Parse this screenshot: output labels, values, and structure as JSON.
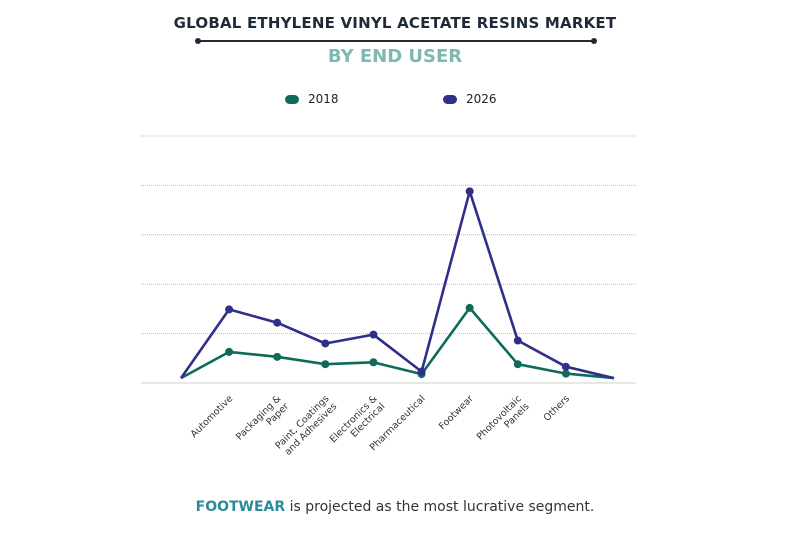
{
  "header": {
    "title": "GLOBAL ETHYLENE VINYL ACETATE RESINS MARKET",
    "subtitle": "BY END USER"
  },
  "colors": {
    "series_2018": "#0e6b59",
    "series_2026": "#2f2f8a",
    "title": "#1e2a38",
    "subtitle": "#7fb8b2",
    "highlight": "#2a8c99"
  },
  "caption": {
    "highlight": "FOOTWEAR",
    "rest": " is projected as the most lucrative segment."
  },
  "chart_data": {
    "type": "line",
    "title": "GLOBAL ETHYLENE VINYL ACETATE RESINS MARKET",
    "subtitle": "BY END USER",
    "categories": [
      "",
      "Automotive",
      "Packaging & Paper",
      "Paint, Coatings and Adhesives",
      "Electronics & Electrical",
      "Pharmaceutical",
      "Footwear",
      "Photovoltaic Panels",
      "Others",
      ""
    ],
    "category_lines": [
      [],
      [
        "Automotive"
      ],
      [
        "Packaging &",
        "Paper"
      ],
      [
        "Paint, Coatings",
        "and Adhesives"
      ],
      [
        "Electronics &",
        "Electrical"
      ],
      [
        "Pharmaceutical"
      ],
      [
        "Footwear"
      ],
      [
        "Photovoltaic",
        "Panels"
      ],
      [
        "Others"
      ],
      []
    ],
    "series": [
      {
        "name": "2018",
        "values": [
          1.0,
          6.3,
          5.3,
          3.8,
          4.2,
          1.8,
          15.2,
          3.8,
          1.9,
          1.0
        ],
        "markers": [
          false,
          true,
          true,
          true,
          true,
          true,
          true,
          true,
          true,
          false
        ]
      },
      {
        "name": "2026",
        "values": [
          1.0,
          14.9,
          12.2,
          8.0,
          9.8,
          2.3,
          38.8,
          8.6,
          3.3,
          1.0
        ],
        "markers": [
          false,
          true,
          true,
          true,
          true,
          true,
          true,
          true,
          true,
          false
        ]
      }
    ],
    "ylim": [
      0,
      50
    ],
    "grid": true,
    "legend_position": "top"
  }
}
